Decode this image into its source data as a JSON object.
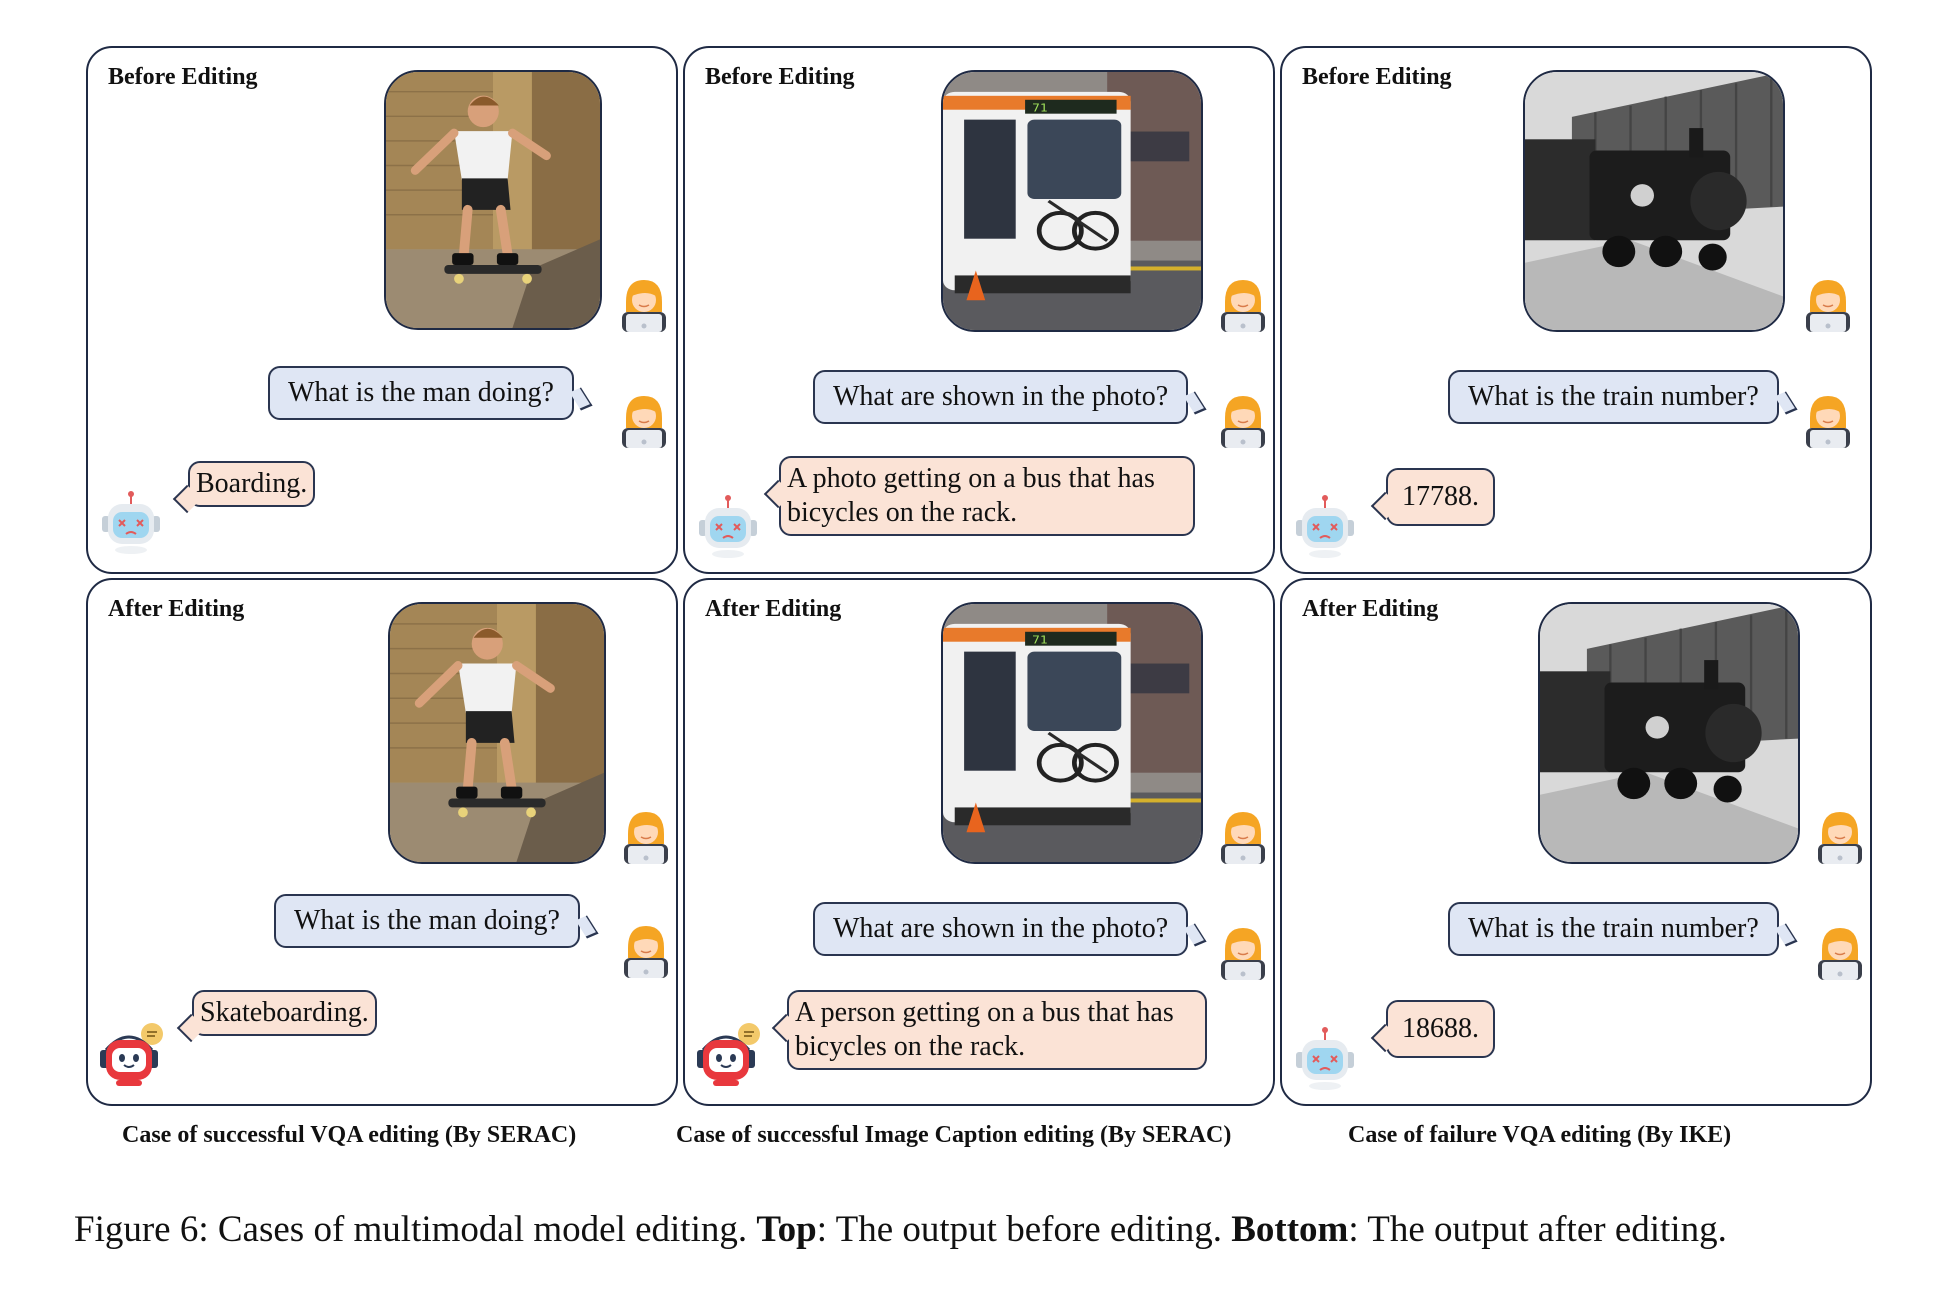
{
  "panels": {
    "vqa_before": {
      "title": "Before Editing",
      "question": "What is the man doing?",
      "answer": "Boarding."
    },
    "caption_before": {
      "title": "Before Editing",
      "question": "What are shown in the photo?",
      "answer": "A photo getting on a bus that has bicycles on the rack."
    },
    "train_before": {
      "title": "Before Editing",
      "question": "What is the train number?",
      "answer": "17788."
    },
    "vqa_after": {
      "title": "After Editing",
      "question": "What is the man doing?",
      "answer": "Skateboarding."
    },
    "caption_after": {
      "title": "After Editing",
      "question": "What are shown in the photo?",
      "answer": "A person getting on a bus that has bicycles on the rack."
    },
    "train_after": {
      "title": "After Editing",
      "question": "What is the train number?",
      "answer": "18688."
    }
  },
  "subcaptions": {
    "vqa": "Case of successful VQA editing (By SERAC)",
    "caption": "Case of successful Image Caption editing (By SERAC)",
    "failure": "Case of failure VQA editing (By IKE)"
  },
  "figure_caption": {
    "prefix": "Figure 6: Cases of multimodal model editing. ",
    "top_label": "Top",
    "top_text": ": The output before editing. ",
    "bottom_label": "Bottom",
    "bottom_text": ": The output after editing."
  },
  "colors": {
    "panel_border": "#1f2a44",
    "question_bubble": "#dfe6f4",
    "answer_bubble": "#fbe3d6",
    "sad_robot": "#9fd6f0",
    "happy_robot": "#e8383d"
  },
  "icons": [
    "user-avatar-icon",
    "sad-robot-icon",
    "happy-robot-icon"
  ]
}
